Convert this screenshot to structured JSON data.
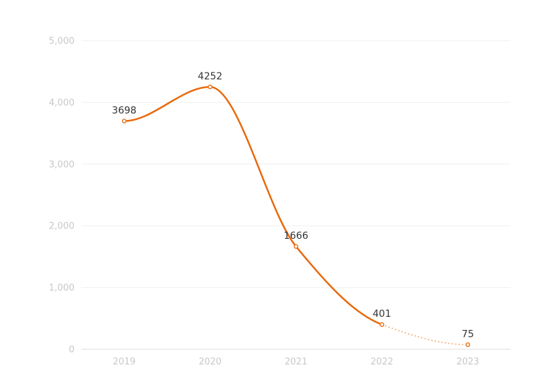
{
  "colors": {
    "line": "#e8690b",
    "projected_line": "#f2b382",
    "grid": "#efefef",
    "axis_labels": "#c8c8c8",
    "data_labels": "#333333"
  },
  "chart_data": {
    "type": "line",
    "title": "",
    "xlabel": "",
    "ylabel": "",
    "categories": [
      "2019",
      "2020",
      "2021",
      "2022",
      "2023"
    ],
    "series": [
      {
        "values": [
          3698,
          4252,
          1666,
          401,
          75
        ],
        "data_labels": [
          "3698",
          "4252",
          "1666",
          "401",
          "75"
        ],
        "smooth": true,
        "dashed_from_index": 3
      }
    ],
    "ylim": [
      0,
      5000
    ],
    "yticks": [
      0,
      1000,
      2000,
      3000,
      4000,
      5000
    ],
    "ytick_labels": [
      "0",
      "1,000",
      "2,000",
      "3,000",
      "4,000",
      "5,000"
    ],
    "grid": true,
    "legend": "none"
  }
}
